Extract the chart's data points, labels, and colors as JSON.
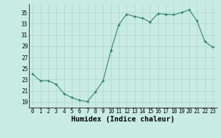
{
  "x": [
    0,
    1,
    2,
    3,
    4,
    5,
    6,
    7,
    8,
    9,
    10,
    11,
    12,
    13,
    14,
    15,
    16,
    17,
    18,
    19,
    20,
    21,
    22,
    23
  ],
  "y": [
    24.0,
    22.8,
    22.8,
    22.2,
    20.5,
    19.8,
    19.3,
    19.1,
    20.8,
    22.8,
    28.2,
    32.8,
    34.7,
    34.3,
    34.0,
    33.3,
    34.8,
    34.7,
    34.6,
    35.0,
    35.5,
    33.5,
    29.8,
    28.8
  ],
  "xlabel": "Humidex (Indice chaleur)",
  "ylim": [
    18,
    36.5
  ],
  "xlim": [
    -0.5,
    23.5
  ],
  "yticks": [
    19,
    21,
    23,
    25,
    27,
    29,
    31,
    33,
    35
  ],
  "xtick_labels": [
    "0",
    "1",
    "2",
    "3",
    "4",
    "5",
    "6",
    "7",
    "8",
    "9",
    "10",
    "11",
    "12",
    "13",
    "14",
    "15",
    "16",
    "17",
    "18",
    "19",
    "20",
    "21",
    "22",
    "23"
  ],
  "line_color": "#2e7d6e",
  "marker_color": "#2e7d6e",
  "bg_color": "#c8ebe3",
  "grid_color": "#aed4cc",
  "xlabel_fontsize": 7.5,
  "tick_fontsize": 5.5
}
